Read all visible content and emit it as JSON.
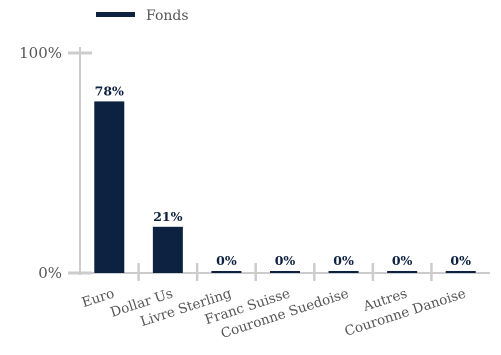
{
  "colors": {
    "bar": "#0d2240",
    "axis": "#cccccc",
    "text": "#555555"
  },
  "legend": {
    "label": "Fonds",
    "position": "top-left"
  },
  "chart_data": {
    "type": "bar",
    "categories": [
      "Euro",
      "Dollar Us",
      "Livre Sterling",
      "Franc Suisse",
      "Couronne Suedoise",
      "Autres",
      "Couronne Danoise"
    ],
    "series": [
      {
        "name": "Fonds",
        "values": [
          78,
          21,
          0,
          0,
          0,
          0,
          0
        ]
      }
    ],
    "data_labels": [
      "78%",
      "21%",
      "0%",
      "0%",
      "0%",
      "0%",
      "0%"
    ],
    "ylim": [
      0,
      100
    ],
    "yticks": [
      0,
      100
    ],
    "ytick_labels": [
      "0%",
      "100%"
    ],
    "title": "",
    "xlabel": "",
    "ylabel": "",
    "grid": false
  }
}
